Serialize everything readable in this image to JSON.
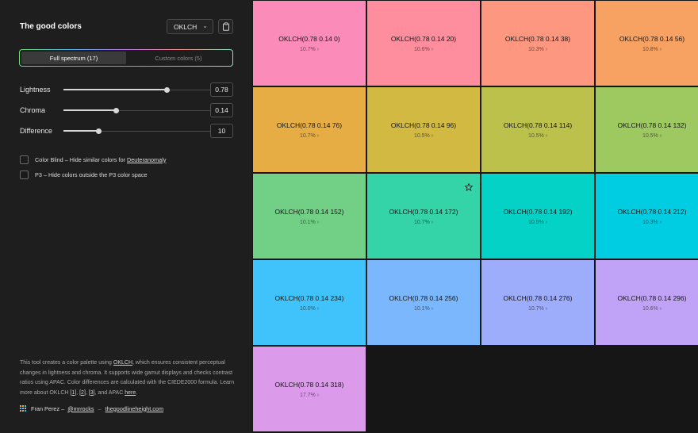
{
  "sidebar": {
    "title": "The good colors",
    "format_select": {
      "value": "OKLCH"
    },
    "tabs": [
      {
        "label": "Full spectrum (17)",
        "active": true
      },
      {
        "label": "Custom colors (5)",
        "active": false
      }
    ],
    "sliders": [
      {
        "label": "Lightness",
        "value": "0.78",
        "fraction": 0.67
      },
      {
        "label": "Chroma",
        "value": "0.14",
        "fraction": 0.34
      },
      {
        "label": "Difference",
        "value": "10",
        "fraction": 0.23
      }
    ],
    "checkboxes": {
      "color_blind": {
        "text": "Color Blind – Hide similar colors for ",
        "link": "Deuteranomaly",
        "checked": false
      },
      "p3": {
        "text": "P3 – Hide colors outside the P3 color space",
        "checked": false
      }
    },
    "description": {
      "t1": "This tool creates a color palette using ",
      "l1": "OKLCH",
      "t2": ", which ensures consistent perceptual changes in lightness and chroma. It supports wide gamut displays and checks contrast ratios using APAC. Color differences are calculated with the CIEDE2000 formula. Learn more about OKLCH ",
      "r1": "[1]",
      "c1": ", ",
      "r2": "[2]",
      "c2": ", ",
      "r3": "[3]",
      "t3": ", and APAC ",
      "here": "here",
      "t4": "."
    },
    "footer": {
      "author": "Fran Perez –",
      "handle": "@mrrocks",
      "dash": "–",
      "site": "thegoodlineheight.com"
    }
  },
  "swatches": [
    {
      "name": "OKLCH(0.78 0.14 0)",
      "pct": "10.7% ›",
      "color": "#fb8bb9"
    },
    {
      "name": "OKLCH(0.78 0.14 20)",
      "pct": "10.6% ›",
      "color": "#fe8e9d"
    },
    {
      "name": "OKLCH(0.78 0.14 38)",
      "pct": "10.3% ›",
      "color": "#fd977f"
    },
    {
      "name": "OKLCH(0.78 0.14 56)",
      "pct": "10.8% ›",
      "color": "#f7a163"
    },
    {
      "name": "OKLCH(0.78 0.14 76)",
      "pct": "10.7% ›",
      "color": "#e6ad44"
    },
    {
      "name": "OKLCH(0.78 0.14 96)",
      "pct": "10.5% ›",
      "color": "#d2b941"
    },
    {
      "name": "OKLCH(0.78 0.14 114)",
      "pct": "10.5% ›",
      "color": "#bcc14b"
    },
    {
      "name": "OKLCH(0.78 0.14 132)",
      "pct": "10.5% ›",
      "color": "#9ec860"
    },
    {
      "name": "OKLCH(0.78 0.14 152)",
      "pct": "10.1% ›",
      "color": "#71d085"
    },
    {
      "name": "OKLCH(0.78 0.14 172)",
      "pct": "10.7% ›",
      "color": "#35d3a8",
      "starred": true
    },
    {
      "name": "OKLCH(0.78 0.14 192)",
      "pct": "10.5% ›",
      "color": "#04d2c6"
    },
    {
      "name": "OKLCH(0.78 0.14 212)",
      "pct": "10.3% ›",
      "color": "#00cde1"
    },
    {
      "name": "OKLCH(0.78 0.14 234)",
      "pct": "10.0% ›",
      "color": "#40c3fa"
    },
    {
      "name": "OKLCH(0.78 0.14 256)",
      "pct": "10.1% ›",
      "color": "#7ab7fd"
    },
    {
      "name": "OKLCH(0.78 0.14 276)",
      "pct": "10.7% ›",
      "color": "#9eacfc"
    },
    {
      "name": "OKLCH(0.78 0.14 296)",
      "pct": "10.6% ›",
      "color": "#c0a3f6"
    },
    {
      "name": "OKLCH(0.78 0.14 318)",
      "pct": "17.7% ›",
      "color": "#dc9aea"
    }
  ]
}
